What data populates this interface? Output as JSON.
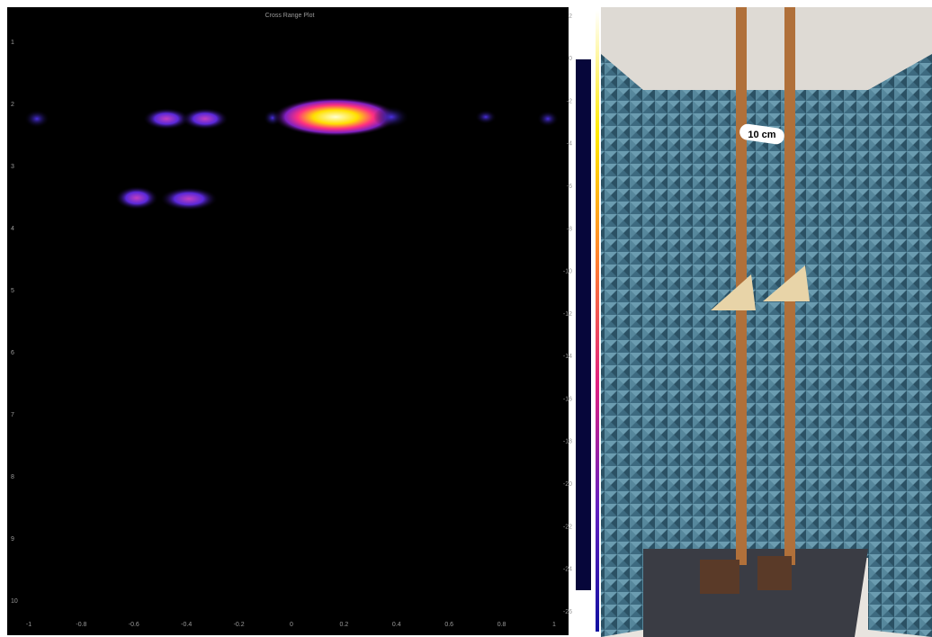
{
  "plot": {
    "title": "Cross Range Plot",
    "x_ticks": [
      "-1",
      "-0.8",
      "-0.6",
      "-0.4",
      "-0.2",
      "0",
      "0.2",
      "0.4",
      "0.6",
      "0.8",
      "1"
    ],
    "y_ticks": [
      "1",
      "2",
      "3",
      "4",
      "5",
      "6",
      "7",
      "8",
      "9",
      "10"
    ]
  },
  "colorbar": {
    "ticks": [
      "2",
      "0",
      "-2",
      "-4",
      "-6",
      "-8",
      "-10",
      "-12",
      "-14",
      "-16",
      "-18",
      "-20",
      "-22",
      "-24",
      "-26"
    ]
  },
  "photo": {
    "label": "10 cm"
  }
}
